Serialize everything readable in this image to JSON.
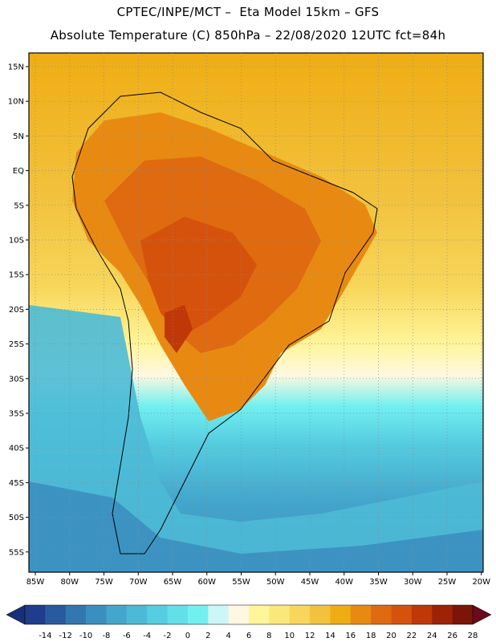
{
  "header": {
    "line1": "CPTEC/INPE/MCT –  Eta Model 15km – GFS",
    "line2": "Absolute Temperature (C) 850hPa – 22/08/2020 12UTC fct=84h"
  },
  "axes": {
    "lat_labels": [
      "15N",
      "10N",
      "5N",
      "EQ",
      "5S",
      "10S",
      "15S",
      "20S",
      "25S",
      "30S",
      "35S",
      "40S",
      "45S",
      "50S",
      "55S"
    ],
    "lon_labels": [
      "85W",
      "80W",
      "75W",
      "70W",
      "65W",
      "60W",
      "55W",
      "50W",
      "45W",
      "40W",
      "35W",
      "30W",
      "25W",
      "20W"
    ]
  },
  "colorbar": {
    "labels": [
      "-14",
      "-12",
      "-10",
      "-8",
      "-6",
      "-4",
      "-2",
      "0",
      "2",
      "4",
      "6",
      "8",
      "10",
      "12",
      "14",
      "16",
      "18",
      "20",
      "22",
      "24",
      "26",
      "28"
    ],
    "colors": [
      "#1f3d8c",
      "#2a5a9e",
      "#3377b0",
      "#3b8fc0",
      "#44a6cc",
      "#4cbad6",
      "#56cde0",
      "#62dfe8",
      "#72f0f0",
      "#cdf6f8",
      "#fff8e0",
      "#fff59a",
      "#fbe87a",
      "#f7d65a",
      "#f2c23e",
      "#efad14",
      "#e88a12",
      "#e06a10",
      "#d5520c",
      "#c03808",
      "#9e2208",
      "#7a1508"
    ],
    "left_arrow_color": "#1a2f7a",
    "right_arrow_color": "#6a0a1a"
  },
  "legend_field": {
    "ocean_north_color": "#f2ab14",
    "ocean_south_color": "#4cbad6",
    "land_hot_color": "#d5520c"
  }
}
